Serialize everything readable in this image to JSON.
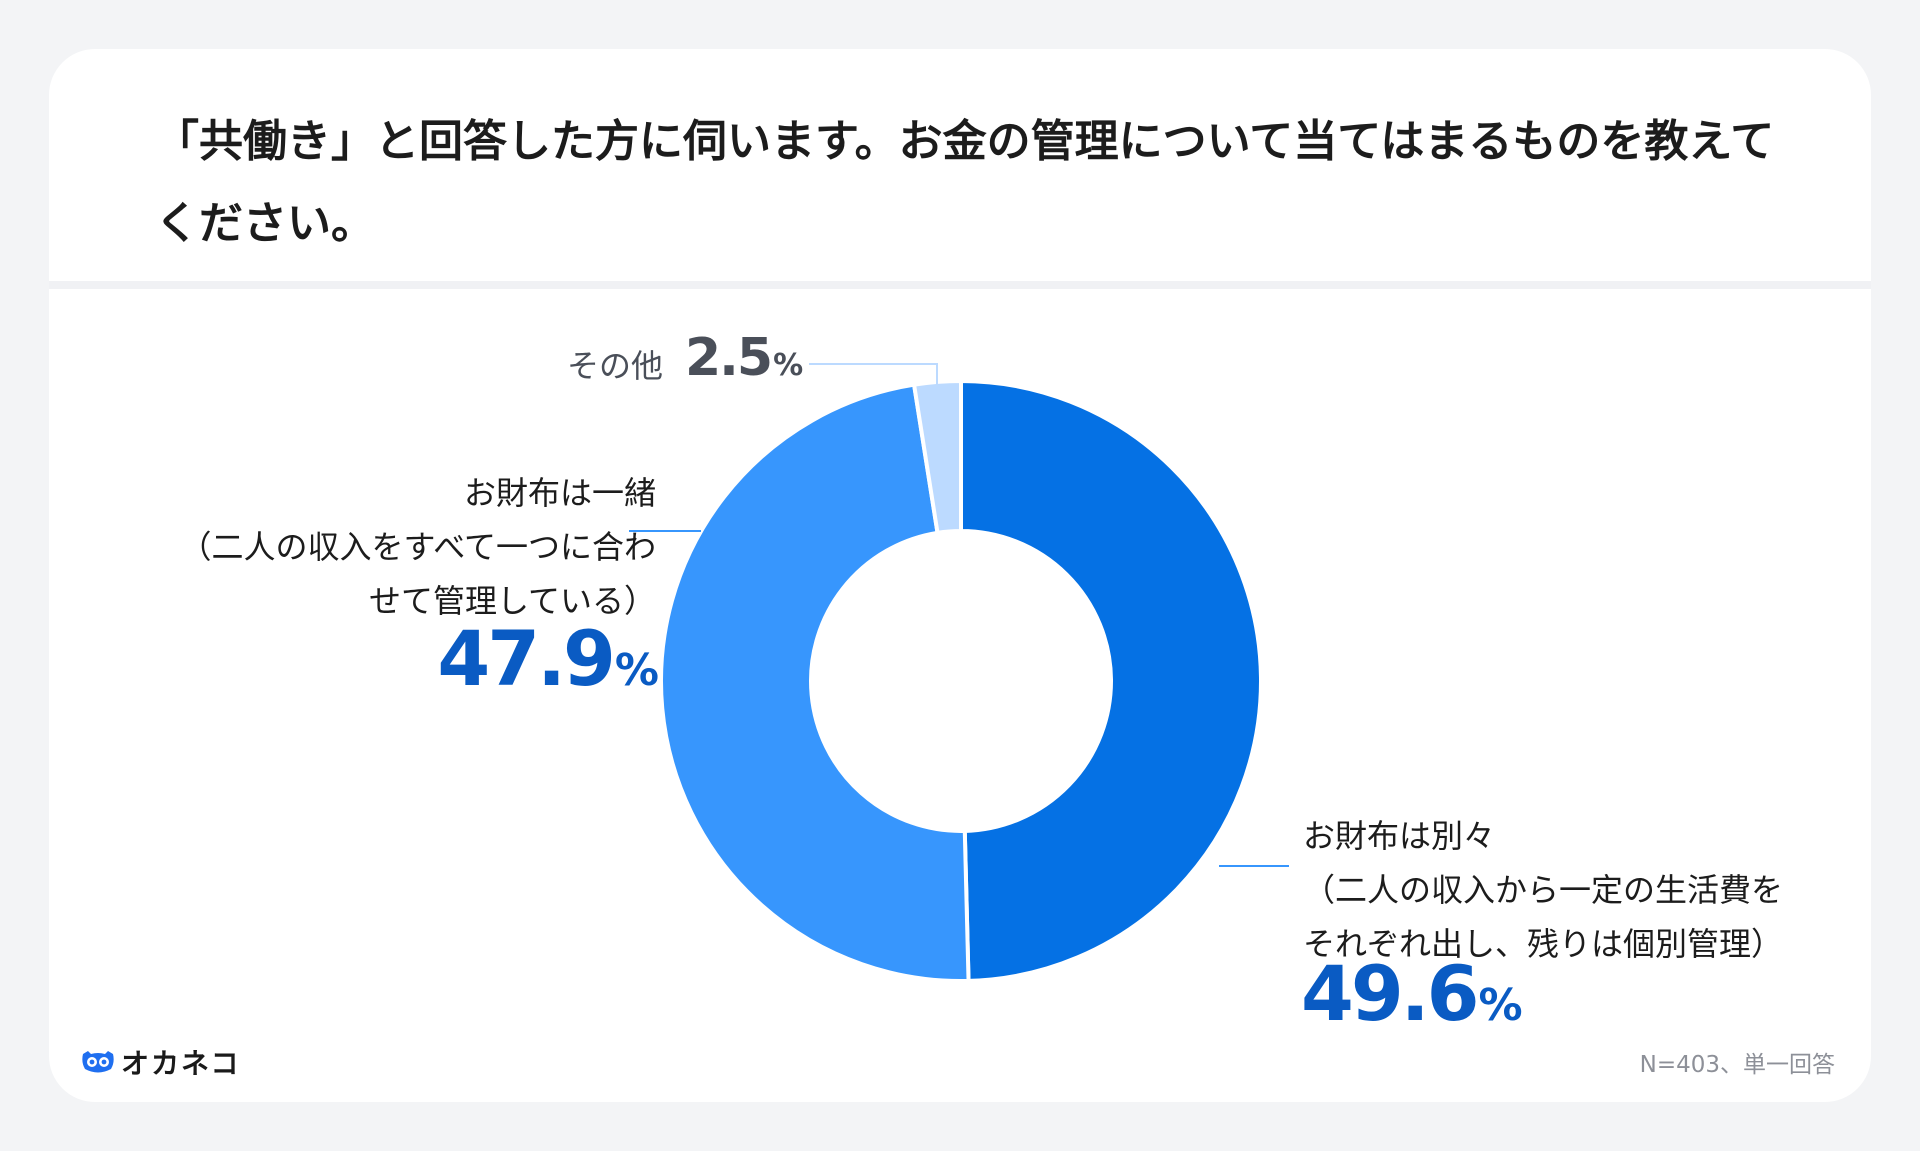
{
  "title": "「共働き」と回答した方に伺います。お金の管理について当てはまるものを教えてください。",
  "chart_data": {
    "type": "pie",
    "donut": true,
    "slices": [
      {
        "label_lines": [
          "お財布は別々",
          "（二人の収入から一定の生活費を",
          "それぞれ出し、残りは個別管理）"
        ],
        "value": 49.6,
        "value_text": "49.6",
        "color": "#0571e4"
      },
      {
        "label_lines": [
          "お財布は一緒",
          "（二人の収入をすべて一つに合わ",
          "せて管理している）"
        ],
        "value": 47.9,
        "value_text": "47.9",
        "color": "#3796fd"
      },
      {
        "label_lines": [
          "その他"
        ],
        "value": 2.5,
        "value_text": "2.5",
        "color": "#bcdaff"
      }
    ],
    "unit": "%",
    "value_text_color": "#0a5bc3",
    "small_value_text_color": "#4a4f59",
    "leader_color": "#3796fd"
  },
  "note": "N=403、単一回答",
  "logo": {
    "text": "オカネコ",
    "icon": "okaneko-cat-icon",
    "color": "#1f6ff0"
  }
}
